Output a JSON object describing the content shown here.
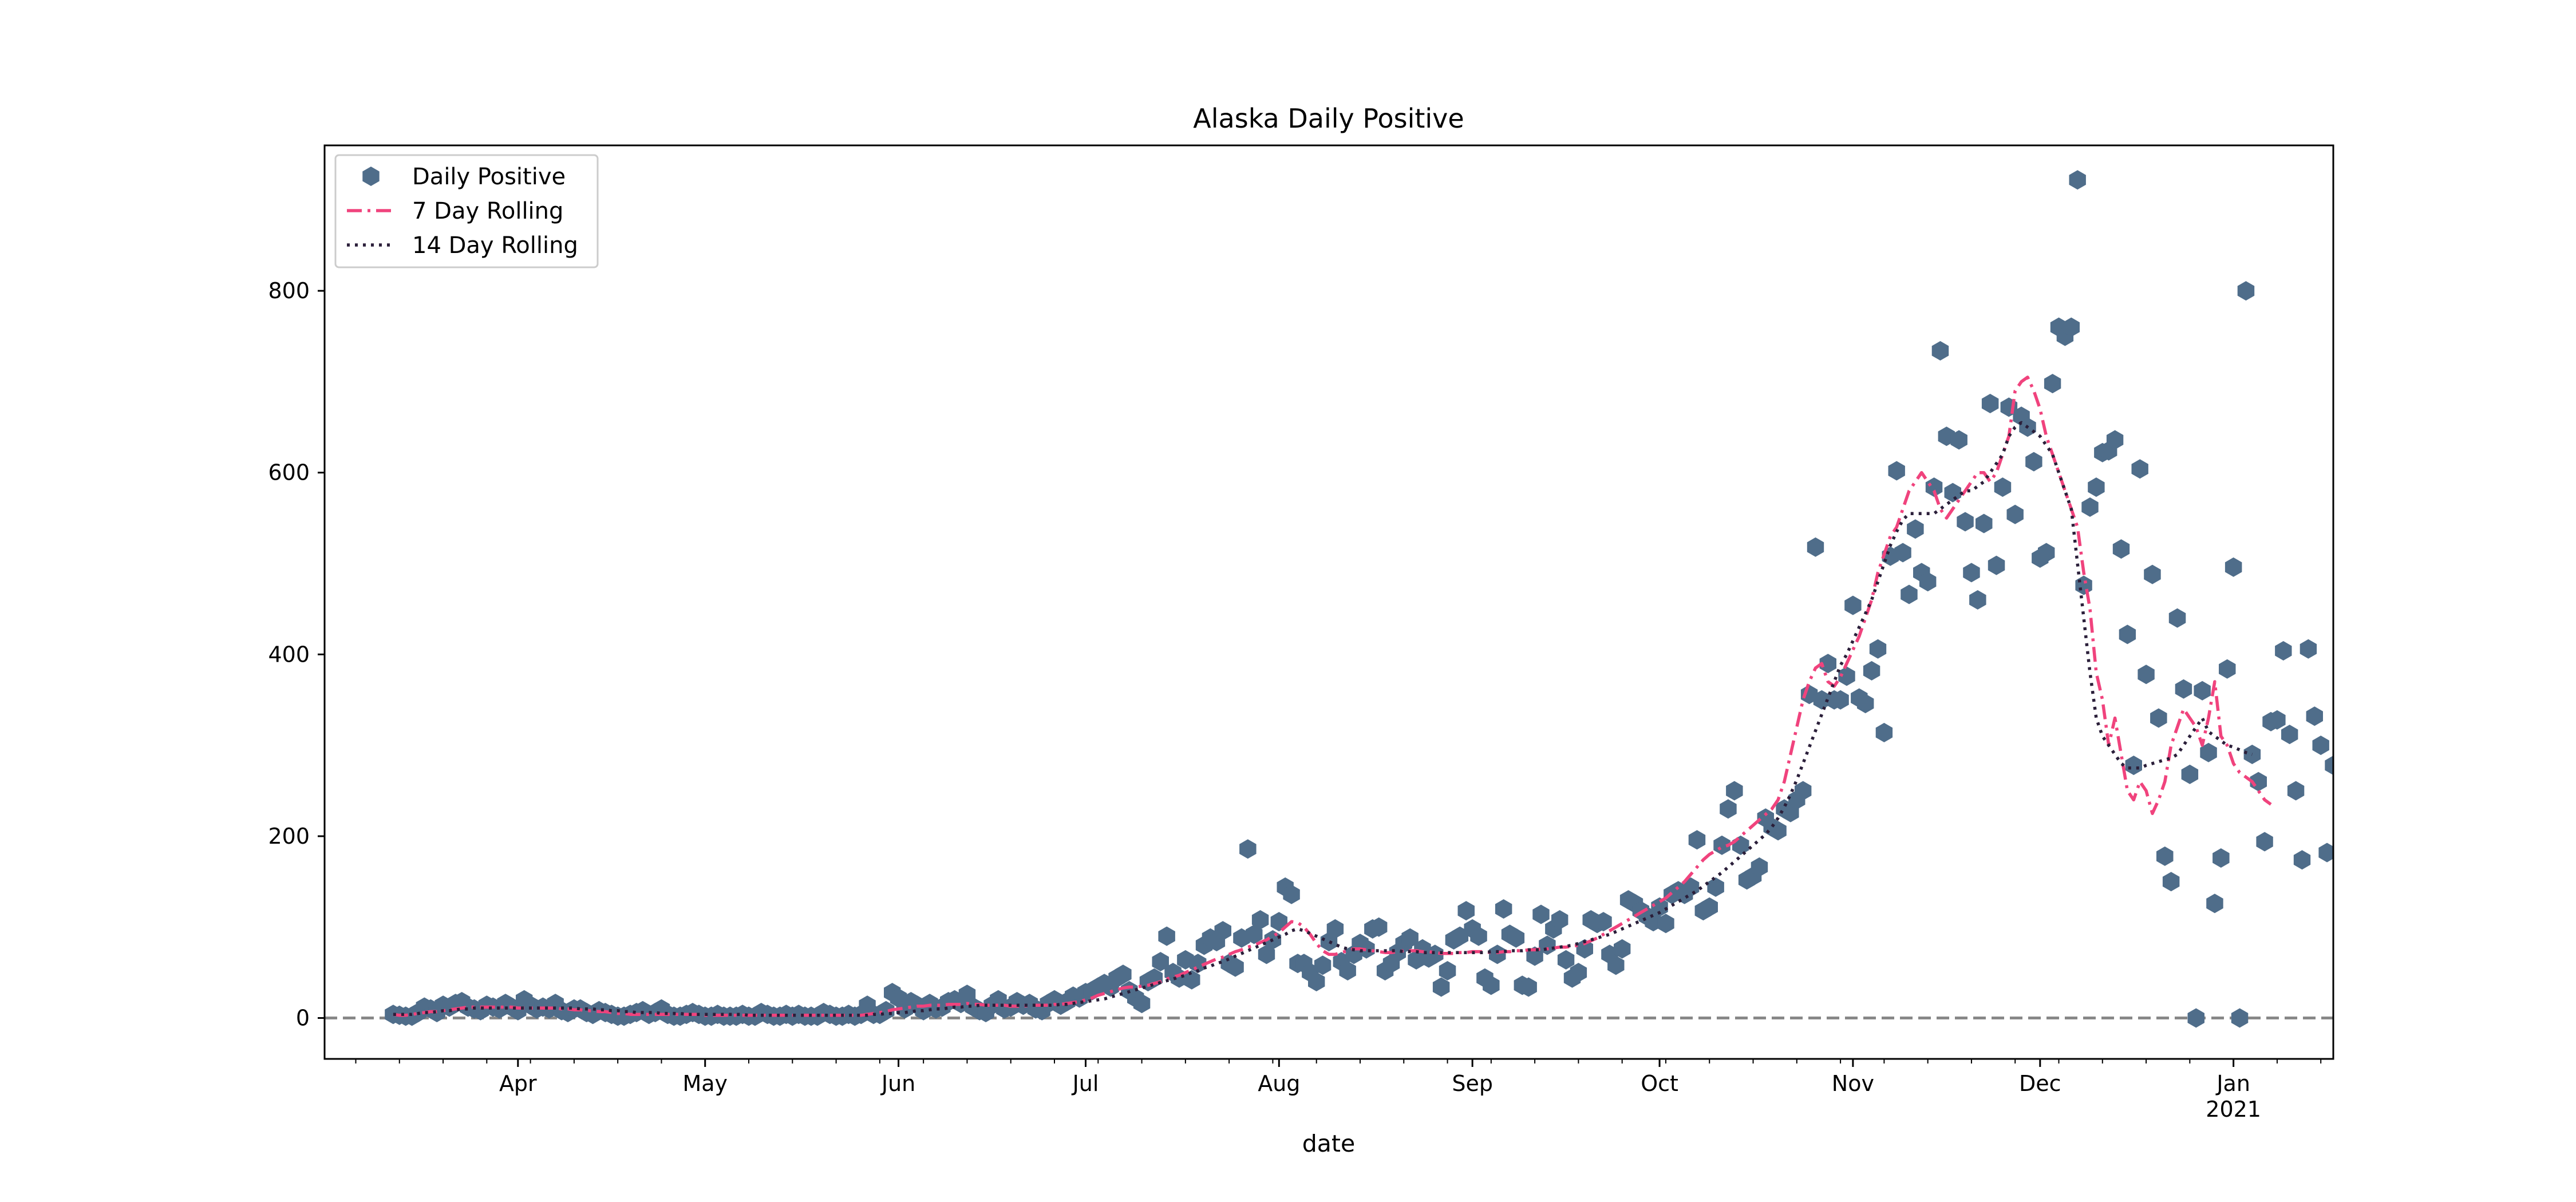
{
  "chart_data": {
    "type": "scatter",
    "title": "Alaska Daily Positive",
    "xlabel": "date",
    "ylabel": "",
    "x_range": [
      "2020-03-01",
      "2021-01-17"
    ],
    "ylim": [
      -45,
      960
    ],
    "y_ticks": [
      0,
      200,
      400,
      600,
      800
    ],
    "x_ticks": [
      {
        "date": "2020-04-01",
        "label": "Apr"
      },
      {
        "date": "2020-05-01",
        "label": "May"
      },
      {
        "date": "2020-06-01",
        "label": "Jun"
      },
      {
        "date": "2020-07-01",
        "label": "Jul"
      },
      {
        "date": "2020-08-01",
        "label": "Aug"
      },
      {
        "date": "2020-09-01",
        "label": "Sep"
      },
      {
        "date": "2020-10-01",
        "label": "Oct"
      },
      {
        "date": "2020-11-01",
        "label": "Nov"
      },
      {
        "date": "2020-12-01",
        "label": "Dec"
      },
      {
        "date": "2021-01-01",
        "label": "Jan",
        "sublabel": "2021"
      }
    ],
    "reference_line": {
      "y": 0,
      "style": "dashed",
      "color": "#888888"
    },
    "grid": false,
    "legend_position": "upper-left",
    "start_date": "2020-03-12",
    "series": [
      {
        "name": "Daily Positive",
        "kind": "scatter",
        "marker": "hexagon",
        "color": "#4f6d8a",
        "values": [
          4,
          3,
          2,
          2,
          6,
          12,
          10,
          6,
          14,
          12,
          16,
          18,
          12,
          10,
          8,
          14,
          12,
          10,
          16,
          12,
          8,
          20,
          14,
          10,
          12,
          10,
          16,
          8,
          6,
          10,
          10,
          6,
          4,
          8,
          6,
          4,
          2,
          2,
          4,
          6,
          8,
          4,
          6,
          10,
          4,
          2,
          2,
          4,
          6,
          4,
          2,
          2,
          4,
          2,
          2,
          2,
          4,
          2,
          2,
          6,
          4,
          2,
          2,
          4,
          2,
          4,
          2,
          2,
          2,
          6,
          4,
          2,
          2,
          4,
          2,
          4,
          14,
          4,
          4,
          8,
          28,
          22,
          10,
          18,
          14,
          8,
          16,
          10,
          12,
          18,
          20,
          16,
          26,
          12,
          8,
          6,
          14,
          20,
          10,
          12,
          18,
          14,
          16,
          10,
          8,
          16,
          20,
          14,
          18,
          24,
          22,
          28,
          30,
          34,
          38,
          34,
          44,
          48,
          30,
          22,
          16,
          40,
          44,
          62,
          90,
          50,
          44,
          64,
          42,
          60,
          80,
          88,
          84,
          96,
          60,
          56,
          88,
          186,
          92,
          108,
          70,
          86,
          106,
          144,
          136,
          60,
          60,
          50,
          40,
          58,
          84,
          98,
          62,
          52,
          70,
          82,
          76,
          98,
          100,
          52,
          60,
          72,
          82,
          88,
          64,
          76,
          66,
          70,
          34,
          52,
          86,
          90,
          118,
          98,
          90,
          44,
          36,
          70,
          120,
          92,
          88,
          36,
          34,
          68,
          114,
          80,
          98,
          108,
          64,
          44,
          50,
          76,
          108,
          104,
          106,
          70,
          58,
          76,
          130,
          126,
          118,
          112,
          106,
          122,
          104,
          136,
          140,
          136,
          144,
          196,
          118,
          122,
          144,
          190,
          230,
          250,
          190,
          152,
          156,
          166,
          220,
          210,
          206,
          230,
          226,
          240,
          250,
          356,
          518,
          350,
          390,
          350,
          350,
          376,
          454,
          352,
          346,
          382,
          406,
          314,
          508,
          602,
          512,
          466,
          538,
          490,
          480,
          584,
          734,
          640,
          578,
          636,
          546,
          490,
          460,
          544,
          676,
          498,
          584,
          672,
          554,
          662,
          650,
          612,
          506,
          512,
          698,
          760,
          750,
          760,
          922,
          476,
          562,
          584,
          622,
          624,
          636,
          516,
          422,
          278,
          604,
          378,
          488,
          330,
          178,
          150,
          440,
          362,
          268,
          0,
          360,
          292,
          126,
          176,
          384,
          496,
          0,
          800,
          290,
          260,
          194,
          326,
          328,
          404,
          312,
          250,
          174,
          406,
          332,
          300,
          182,
          278
        ]
      },
      {
        "name": "7 Day Rolling",
        "kind": "line",
        "dash": "dashdot",
        "color": "#f0437d",
        "values": [
          4,
          3,
          3,
          4,
          5,
          6,
          7,
          7,
          8,
          9,
          10,
          11,
          12,
          12,
          12,
          12,
          12,
          12,
          12,
          12,
          11,
          11,
          11,
          11,
          11,
          11,
          11,
          10,
          10,
          9,
          9,
          8,
          8,
          7,
          7,
          6,
          5,
          5,
          4,
          4,
          4,
          4,
          4,
          4,
          4,
          4,
          4,
          4,
          4,
          4,
          3,
          3,
          3,
          3,
          3,
          3,
          3,
          3,
          3,
          3,
          3,
          3,
          3,
          3,
          3,
          3,
          3,
          3,
          3,
          3,
          3,
          3,
          3,
          3,
          3,
          3,
          4,
          5,
          6,
          7,
          9,
          10,
          11,
          12,
          13,
          13,
          14,
          14,
          14,
          15,
          15,
          15,
          16,
          15,
          15,
          14,
          14,
          14,
          14,
          13,
          13,
          13,
          14,
          14,
          14,
          14,
          15,
          15,
          16,
          17,
          18,
          20,
          22,
          25,
          27,
          29,
          31,
          33,
          34,
          34,
          35,
          36,
          38,
          40,
          43,
          45,
          47,
          50,
          53,
          56,
          59,
          62,
          65,
          67,
          70,
          73,
          75,
          78,
          80,
          83,
          86,
          90,
          94,
          100,
          106,
          105,
          100,
          92,
          82,
          74,
          70,
          70,
          72,
          74,
          76,
          76,
          75,
          74,
          73,
          72,
          72,
          73,
          74,
          74,
          74,
          73,
          73,
          72,
          71,
          71,
          71,
          72,
          72,
          73,
          73,
          73,
          72,
          72,
          73,
          73,
          74,
          74,
          75,
          75,
          76,
          76,
          77,
          78,
          78,
          79,
          80,
          82,
          85,
          88,
          92,
          96,
          100,
          104,
          108,
          112,
          116,
          120,
          124,
          128,
          132,
          138,
          144,
          150,
          158,
          166,
          174,
          180,
          184,
          188,
          190,
          194,
          200,
          206,
          212,
          218,
          224,
          230,
          240,
          260,
          290,
          320,
          350,
          370,
          385,
          390,
          370,
          365,
          375,
          390,
          405,
          420,
          440,
          460,
          490,
          510,
          530,
          540,
          560,
          580,
          590,
          600,
          590,
          580,
          560,
          550,
          560,
          570,
          580,
          590,
          600,
          600,
          590,
          600,
          620,
          640,
          690,
          700,
          705,
          690,
          670,
          640,
          620,
          600,
          580,
          560,
          540,
          490,
          450,
          380,
          350,
          300,
          330,
          290,
          250,
          240,
          260,
          250,
          225,
          240,
          260,
          300,
          320,
          340,
          330,
          320,
          300,
          330,
          370,
          310,
          300,
          280,
          270,
          265,
          260,
          250,
          240,
          235
        ]
      },
      {
        "name": "14 Day Rolling",
        "kind": "line",
        "dash": "dotted",
        "color": "#2b1f3a",
        "values": [
          4,
          4,
          4,
          4,
          5,
          6,
          6,
          7,
          8,
          8,
          9,
          10,
          10,
          11,
          11,
          11,
          11,
          11,
          11,
          11,
          11,
          11,
          11,
          11,
          11,
          11,
          11,
          11,
          11,
          11,
          10,
          10,
          10,
          9,
          9,
          8,
          8,
          7,
          7,
          6,
          6,
          6,
          6,
          5,
          5,
          5,
          5,
          4,
          4,
          4,
          4,
          4,
          4,
          4,
          4,
          4,
          4,
          3,
          3,
          3,
          3,
          3,
          3,
          3,
          3,
          3,
          3,
          3,
          3,
          3,
          3,
          3,
          3,
          3,
          3,
          3,
          3,
          4,
          4,
          5,
          5,
          6,
          6,
          7,
          8,
          8,
          9,
          10,
          10,
          11,
          12,
          12,
          13,
          13,
          14,
          14,
          14,
          14,
          14,
          14,
          14,
          14,
          14,
          14,
          14,
          14,
          14,
          15,
          15,
          16,
          17,
          18,
          19,
          20,
          21,
          23,
          25,
          27,
          29,
          31,
          33,
          35,
          37,
          39,
          41,
          43,
          45,
          47,
          50,
          52,
          55,
          57,
          60,
          62,
          65,
          68,
          71,
          74,
          77,
          80,
          83,
          86,
          89,
          92,
          96,
          98,
          96,
          93,
          90,
          87,
          84,
          81,
          78,
          76,
          75,
          74,
          74,
          74,
          74,
          74,
          74,
          74,
          73,
          73,
          73,
          72,
          72,
          72,
          72,
          72,
          72,
          72,
          72,
          72,
          72,
          72,
          73,
          73,
          73,
          74,
          74,
          74,
          75,
          75,
          75,
          76,
          77,
          78,
          79,
          80,
          82,
          84,
          86,
          88,
          90,
          92,
          95,
          98,
          101,
          104,
          107,
          110,
          113,
          116,
          120,
          124,
          128,
          132,
          136,
          140,
          145,
          150,
          155,
          160,
          166,
          172,
          178,
          184,
          190,
          196,
          202,
          210,
          220,
          232,
          246,
          262,
          280,
          298,
          316,
          334,
          352,
          370,
          388,
          400,
          415,
          430,
          445,
          460,
          480,
          500,
          520,
          535,
          548,
          555,
          555,
          555,
          555,
          555,
          560,
          565,
          570,
          575,
          580,
          580,
          585,
          590,
          600,
          610,
          620,
          640,
          650,
          655,
          650,
          645,
          640,
          630,
          620,
          600,
          580,
          560,
          500,
          440,
          380,
          330,
          310,
          300,
          290,
          280,
          275,
          275,
          275,
          278,
          280,
          282,
          284,
          286,
          290,
          300,
          310,
          320,
          330,
          315,
          310,
          305,
          300,
          298,
          295,
          292,
          290
        ]
      }
    ]
  }
}
